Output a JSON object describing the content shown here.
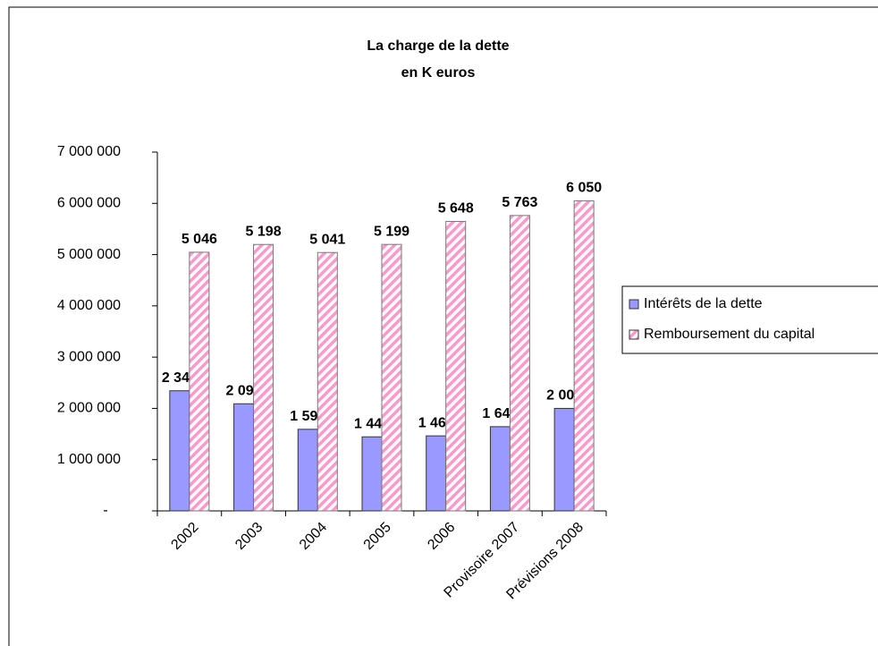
{
  "chart_data": {
    "type": "bar",
    "title": "La charge de la dette",
    "subtitle": "en K euros",
    "categories": [
      "2002",
      "2003",
      "2004",
      "2005",
      "2006",
      "Provisoire 2007",
      "Prévisions 2008"
    ],
    "series": [
      {
        "name": "Intérêts de la dette",
        "color": "#9999ff",
        "values": [
          2344000,
          2090000,
          1592000,
          1445000,
          1464000,
          1643000,
          2000000
        ],
        "value_labels": [
          "2 344",
          "2 090",
          "1 592",
          "1 445",
          "1 464",
          "1 643",
          "2 000"
        ]
      },
      {
        "name": "Remboursement du capital",
        "color": "#ff99cc",
        "values": [
          5046000,
          5198000,
          5041000,
          5199000,
          5648000,
          5763000,
          6050000
        ],
        "value_labels": [
          "5 046",
          "5 198",
          "5 041",
          "5 199",
          "5 648",
          "5 763",
          "6 050"
        ]
      }
    ],
    "ylim": [
      0,
      7000000
    ],
    "yticks": [
      {
        "value": 0,
        "label": "-"
      },
      {
        "value": 1000000,
        "label": "1 000 000"
      },
      {
        "value": 2000000,
        "label": "2 000 000"
      },
      {
        "value": 3000000,
        "label": "3 000 000"
      },
      {
        "value": 4000000,
        "label": "4 000 000"
      },
      {
        "value": 5000000,
        "label": "5 000 000"
      },
      {
        "value": 6000000,
        "label": "6 000 000"
      },
      {
        "value": 7000000,
        "label": "7 000 000"
      }
    ],
    "grid": false,
    "legend": "right"
  }
}
